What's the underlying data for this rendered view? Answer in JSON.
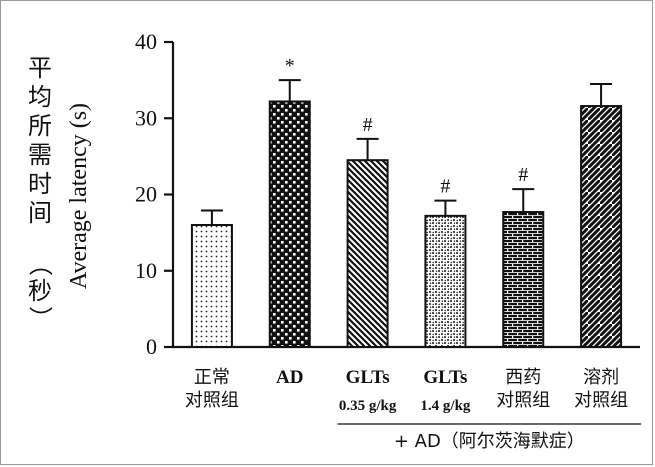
{
  "chart_data": {
    "type": "bar",
    "ylabel": "Average latency (s)",
    "ylabel_cn": [
      "平",
      "均",
      "所",
      "需",
      "时",
      "间"
    ],
    "ylabel_cn_paren": [
      "（",
      "秒",
      "）"
    ],
    "ylim": [
      0,
      40
    ],
    "yticks": [
      "0",
      "10",
      "20",
      "30",
      "40"
    ],
    "categories": [
      {
        "line1": "正常",
        "line2": "对照组",
        "style": "cn"
      },
      {
        "line1": "AD",
        "line2": "",
        "style": "bold"
      },
      {
        "line1": "GLTs",
        "line2": "0.35 g/kg",
        "style": "bold"
      },
      {
        "line1": "GLTs",
        "line2": "1.4 g/kg",
        "style": "bold"
      },
      {
        "line1": "西药",
        "line2": "对照组",
        "style": "cn"
      },
      {
        "line1": "溶剂",
        "line2": "对照组",
        "style": "cn"
      }
    ],
    "values": [
      16.0,
      32.2,
      24.5,
      17.2,
      17.7,
      31.6
    ],
    "errors": [
      1.9,
      2.8,
      2.8,
      2.0,
      3.0,
      2.9
    ],
    "patterns": [
      "dots",
      "checker",
      "diag-back",
      "speckle",
      "bricks",
      "diag-fwd"
    ],
    "significance": [
      "",
      "*",
      "#",
      "#",
      "#",
      ""
    ],
    "group_label": "+ AD（阿尔茨海默症）"
  }
}
